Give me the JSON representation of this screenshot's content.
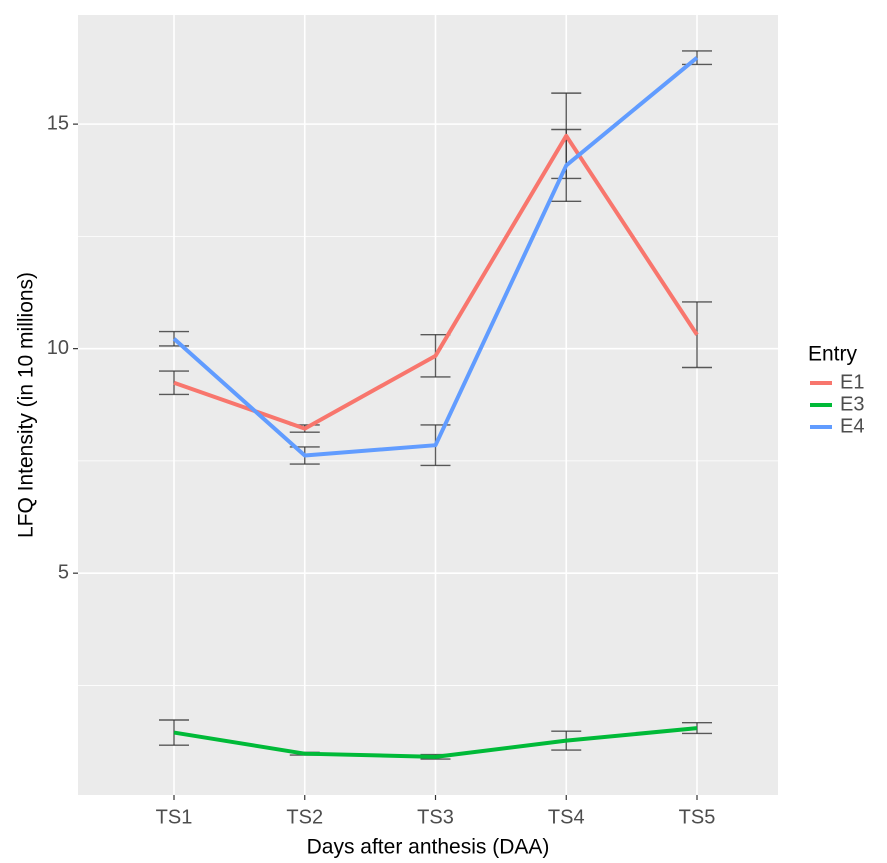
{
  "chart_data": {
    "type": "line",
    "x_label": "Days after anthesis (DAA)",
    "y_label": "LFQ Intensity (in 10 millions)",
    "legend_title": "Entry",
    "legend_position": "right",
    "categories": [
      "TS1",
      "TS2",
      "TS3",
      "TS4",
      "TS5"
    ],
    "series": [
      {
        "name": "E1",
        "color": "#F8766D",
        "values": [
          9.24,
          8.22,
          9.84,
          14.74,
          10.31
        ],
        "errors": [
          0.26,
          0.08,
          0.47,
          0.95,
          0.73
        ]
      },
      {
        "name": "E3",
        "color": "#00BA38",
        "values": [
          1.45,
          0.98,
          0.91,
          1.27,
          1.55
        ],
        "errors": [
          0.28,
          0.03,
          0.05,
          0.21,
          0.12
        ]
      },
      {
        "name": "E4",
        "color": "#619CFF",
        "values": [
          10.22,
          7.62,
          7.85,
          14.08,
          16.48
        ],
        "errors": [
          0.16,
          0.19,
          0.45,
          0.8,
          0.15
        ]
      }
    ],
    "ylim": [
      0.06,
      17.43
    ],
    "yticks": [
      5,
      10,
      15
    ],
    "minor_yticks": [
      2.5,
      7.5,
      12.5
    ],
    "grid": true,
    "error_bar_color": "#333333"
  }
}
